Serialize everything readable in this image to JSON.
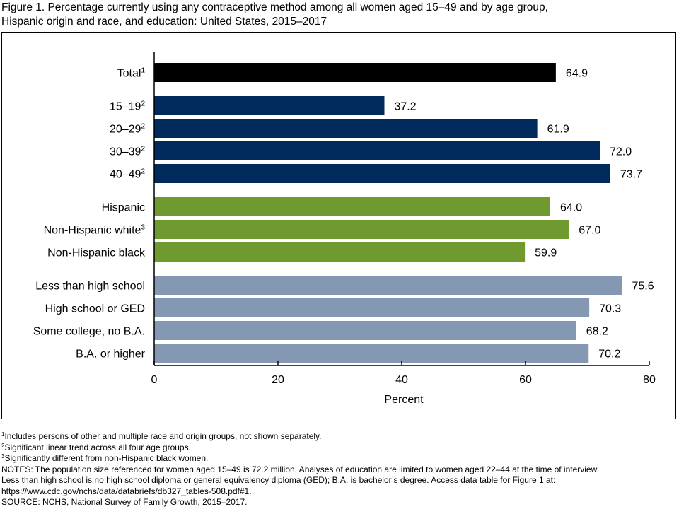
{
  "figure": {
    "title_line1": "Figure 1. Percentage currently using any contraceptive method among all women aged 15–49 and by age group,",
    "title_line2": "Hispanic origin and race, and education: United States, 2015–2017"
  },
  "chart_data": {
    "type": "bar",
    "orientation": "horizontal",
    "xlabel": "Percent",
    "xlim": [
      0,
      80
    ],
    "xticks": [
      0,
      20,
      40,
      60,
      80
    ],
    "grid": false,
    "colors": {
      "total": "#000000",
      "age": "#002a5c",
      "race": "#6f9a2f",
      "education": "#8498b4"
    },
    "groups": [
      {
        "name": "total",
        "bars": [
          {
            "label": "Total",
            "sup": "1",
            "value": 64.9,
            "value_label": "64.9"
          }
        ]
      },
      {
        "name": "age",
        "bars": [
          {
            "label": "15–19",
            "sup": "2",
            "value": 37.2,
            "value_label": "37.2"
          },
          {
            "label": "20–29",
            "sup": "2",
            "value": 61.9,
            "value_label": "61.9"
          },
          {
            "label": "30–39",
            "sup": "2",
            "value": 72.0,
            "value_label": "72.0"
          },
          {
            "label": "40–49",
            "sup": "2",
            "value": 73.7,
            "value_label": "73.7"
          }
        ]
      },
      {
        "name": "race",
        "bars": [
          {
            "label": "Hispanic",
            "sup": "",
            "value": 64.0,
            "value_label": "64.0"
          },
          {
            "label": "Non-Hispanic white",
            "sup": "3",
            "value": 67.0,
            "value_label": "67.0"
          },
          {
            "label": "Non-Hispanic black",
            "sup": "",
            "value": 59.9,
            "value_label": "59.9"
          }
        ]
      },
      {
        "name": "education",
        "bars": [
          {
            "label": "Less than high school",
            "sup": "",
            "value": 75.6,
            "value_label": "75.6"
          },
          {
            "label": "High school or GED",
            "sup": "",
            "value": 70.3,
            "value_label": "70.3"
          },
          {
            "label": "Some college, no B.A.",
            "sup": "",
            "value": 68.2,
            "value_label": "68.2"
          },
          {
            "label": "B.A. or higher",
            "sup": "",
            "value": 70.2,
            "value_label": "70.2"
          }
        ]
      }
    ]
  },
  "footnotes": [
    {
      "sup": "1",
      "text": "Includes persons of other and multiple race and origin groups, not shown separately."
    },
    {
      "sup": "2",
      "text": "Significant linear trend across all four age groups."
    },
    {
      "sup": "3",
      "text": "Significantly different from non-Hispanic black women."
    }
  ],
  "notes": {
    "line1": "NOTES: The population size referenced for women aged 15–49 is 72.2 million. Analyses of education are limited to women aged 22–44 at the time of interview.",
    "line2": "Less than high school is no high school diploma or general equivalency diploma (GED); B.A. is bachelor’s degree. Access data table for Figure 1 at:",
    "line3": "https://www.cdc.gov/nchs/data/databriefs/db327_tables-508.pdf#1.",
    "source": "SOURCE: NCHS, National Survey of Family Growth, 2015–2017."
  }
}
